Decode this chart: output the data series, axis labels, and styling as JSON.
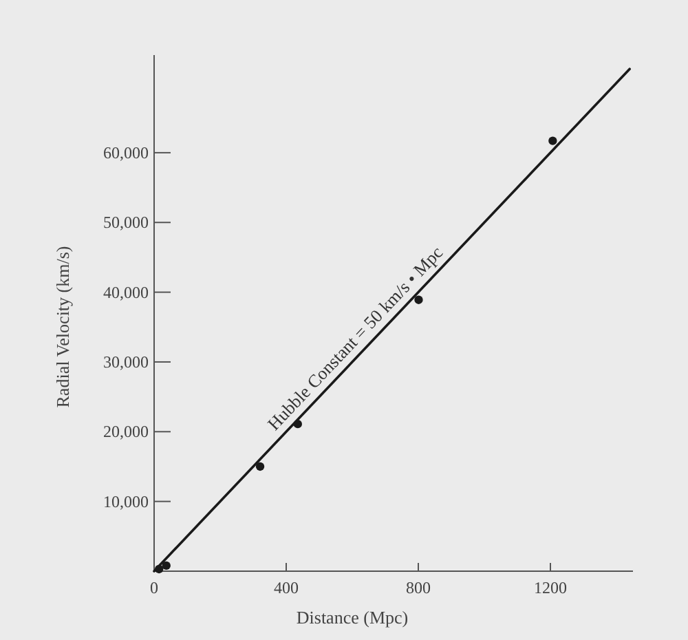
{
  "chart_data": {
    "type": "scatter",
    "xlabel": "Distance (Mpc)",
    "ylabel": "Radial Velocity (km/s)",
    "xlim": [
      0,
      1450
    ],
    "ylim": [
      0,
      74000
    ],
    "xticks": [
      0,
      400,
      800,
      1200
    ],
    "yticks": [
      {
        "value": 10000,
        "label": "10,000"
      },
      {
        "value": 20000,
        "label": "20,000"
      },
      {
        "value": 30000,
        "label": "30,000"
      },
      {
        "value": 40000,
        "label": "40,000"
      },
      {
        "value": 50000,
        "label": "50,000"
      },
      {
        "value": 60000,
        "label": "60,000"
      }
    ],
    "grid": false,
    "series": [
      {
        "marker": "circle",
        "color": "#1a1a1a",
        "x": [
          15,
          37,
          321,
          435,
          801,
          1207
        ],
        "values": [
          300,
          800,
          15000,
          21100,
          38900,
          61700
        ]
      },
      {
        "type": "line",
        "color": "#1a1a1a",
        "x": [
          0,
          1440
        ],
        "values": [
          0,
          72000
        ]
      }
    ],
    "annotations": [
      {
        "text": "Hubble Constant = 50 km/s • Mpc",
        "x": 640,
        "y": 32000
      }
    ]
  }
}
